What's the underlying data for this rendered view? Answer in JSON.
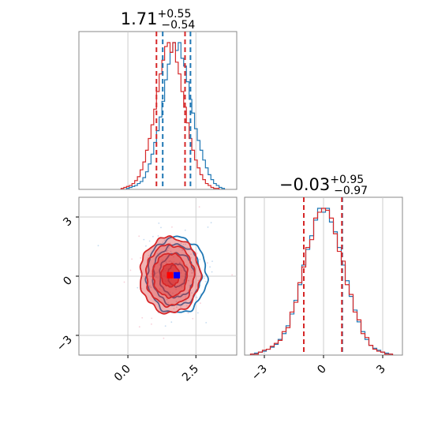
{
  "chart_data": [
    {
      "type": "histogram",
      "panel": "marginal-param-1",
      "title": {
        "median": "1.71",
        "plus": "+0.55",
        "minus": "−0.54"
      },
      "x_range": [
        -1.8,
        4.0
      ],
      "ticks": [
        0.0,
        2.5
      ],
      "tick_labels": [
        "0.0",
        "2.5"
      ],
      "grid": true,
      "series": [
        {
          "color": "#1f77b4",
          "quantiles": [
            1.28,
            2.3
          ],
          "bins_center": [
            0.0,
            0.1,
            0.2,
            0.3,
            0.4,
            0.5,
            0.6,
            0.7,
            0.8,
            0.9,
            1.0,
            1.1,
            1.2,
            1.3,
            1.4,
            1.5,
            1.6,
            1.7,
            1.8,
            1.9,
            2.0,
            2.1,
            2.2,
            2.3,
            2.4,
            2.5,
            2.6,
            2.7,
            2.8,
            2.9,
            3.0,
            3.1,
            3.2,
            3.3,
            3.4,
            3.5
          ],
          "counts": [
            1,
            2,
            3,
            4,
            6,
            8,
            12,
            18,
            26,
            36,
            48,
            60,
            74,
            90,
            112,
            128,
            140,
            150,
            142,
            150,
            134,
            126,
            110,
            92,
            78,
            62,
            50,
            40,
            30,
            22,
            15,
            10,
            6,
            4,
            2,
            1
          ]
        },
        {
          "color": "#d62728",
          "quantiles": [
            1.05,
            2.1
          ],
          "bins_center": [
            -0.2,
            -0.1,
            0.0,
            0.1,
            0.2,
            0.3,
            0.4,
            0.5,
            0.6,
            0.7,
            0.8,
            0.9,
            1.0,
            1.1,
            1.2,
            1.3,
            1.4,
            1.5,
            1.6,
            1.7,
            1.8,
            1.9,
            2.0,
            2.1,
            2.2,
            2.3,
            2.4,
            2.5,
            2.6,
            2.7,
            2.8,
            2.9,
            3.0,
            3.1,
            3.2,
            3.3
          ],
          "counts": [
            1,
            2,
            3,
            4,
            6,
            9,
            13,
            20,
            28,
            40,
            52,
            66,
            82,
            100,
            118,
            132,
            146,
            150,
            140,
            150,
            130,
            118,
            100,
            84,
            68,
            52,
            40,
            30,
            22,
            15,
            10,
            6,
            4,
            2,
            1,
            1
          ]
        }
      ]
    },
    {
      "type": "contour",
      "panel": "joint-param-1-param-2",
      "x_range": [
        -1.8,
        4.0
      ],
      "y_range": [
        -4.0,
        4.0
      ],
      "xticks": [
        0.0,
        2.5
      ],
      "xtick_labels": [
        "0.0",
        "2.5"
      ],
      "yticks": [
        -3,
        0,
        3
      ],
      "ytick_labels": [
        "−3",
        "0",
        "3"
      ],
      "grid": true,
      "series": [
        {
          "color": "#1f77b4",
          "center": [
            1.8,
            0.05
          ],
          "sigma": [
            0.55,
            0.96
          ],
          "marker_color": "#0000ff"
        },
        {
          "color": "#d62728",
          "center": [
            1.55,
            0.05
          ],
          "sigma": [
            0.55,
            0.96
          ],
          "marker_color": "#ff0000"
        }
      ]
    },
    {
      "type": "histogram",
      "panel": "marginal-param-2",
      "title": {
        "median": "−0.03",
        "plus": "+0.95",
        "minus": "−0.97"
      },
      "x_range": [
        -4.0,
        4.0
      ],
      "ticks": [
        -3,
        0,
        3
      ],
      "tick_labels": [
        "−3",
        "0",
        "3"
      ],
      "grid": true,
      "series": [
        {
          "color": "#1f77b4",
          "quantiles": [
            -1.0,
            0.95
          ],
          "bins_center": [
            -3.6,
            -3.4,
            -3.2,
            -3.0,
            -2.8,
            -2.6,
            -2.4,
            -2.2,
            -2.0,
            -1.8,
            -1.6,
            -1.4,
            -1.2,
            -1.0,
            -0.8,
            -0.6,
            -0.4,
            -0.2,
            0.0,
            0.2,
            0.4,
            0.6,
            0.8,
            1.0,
            1.2,
            1.4,
            1.6,
            1.8,
            2.0,
            2.2,
            2.4,
            2.6,
            2.8,
            3.0,
            3.2,
            3.4
          ],
          "counts": [
            1,
            2,
            3,
            4,
            6,
            8,
            11,
            16,
            22,
            30,
            42,
            56,
            72,
            92,
            108,
            122,
            138,
            150,
            146,
            150,
            136,
            126,
            110,
            92,
            76,
            60,
            46,
            34,
            24,
            16,
            10,
            7,
            5,
            3,
            2,
            1
          ]
        },
        {
          "color": "#d62728",
          "quantiles": [
            -1.0,
            0.93
          ],
          "bins_center": [
            -3.6,
            -3.4,
            -3.2,
            -3.0,
            -2.8,
            -2.6,
            -2.4,
            -2.2,
            -2.0,
            -1.8,
            -1.6,
            -1.4,
            -1.2,
            -1.0,
            -0.8,
            -0.6,
            -0.4,
            -0.2,
            0.0,
            0.2,
            0.4,
            0.6,
            0.8,
            1.0,
            1.2,
            1.4,
            1.6,
            1.8,
            2.0,
            2.2,
            2.4,
            2.6,
            2.8,
            3.0,
            3.2,
            3.4
          ],
          "counts": [
            1,
            1,
            3,
            5,
            6,
            9,
            12,
            15,
            24,
            28,
            44,
            54,
            74,
            90,
            110,
            118,
            140,
            146,
            150,
            148,
            140,
            124,
            106,
            96,
            72,
            62,
            44,
            36,
            22,
            18,
            10,
            6,
            4,
            3,
            1,
            1
          ]
        }
      ]
    }
  ]
}
